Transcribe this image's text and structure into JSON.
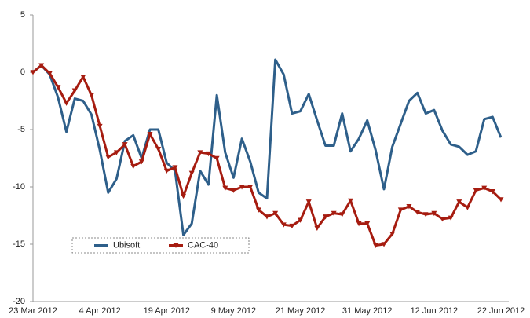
{
  "chart_data": {
    "type": "line",
    "categories": [
      "23 Mar 2012",
      null,
      null,
      null,
      null,
      null,
      null,
      null,
      "4 Apr 2012",
      null,
      null,
      null,
      null,
      null,
      null,
      null,
      "19 Apr 2012",
      null,
      null,
      null,
      null,
      null,
      null,
      null,
      "9 May 2012",
      null,
      null,
      null,
      null,
      null,
      null,
      null,
      "21 May 2012",
      null,
      null,
      null,
      null,
      null,
      null,
      null,
      "31 May 2012",
      null,
      null,
      null,
      null,
      null,
      null,
      null,
      "12 Jun 2012",
      null,
      null,
      null,
      null,
      null,
      null,
      null,
      "22 Jun 2012"
    ],
    "series": [
      {
        "name": "Ubisoft",
        "color": "#2e5f8a",
        "marker": "none",
        "values": [
          0,
          0.6,
          -0.2,
          -2.2,
          -5.2,
          -2.3,
          -2.5,
          -3.7,
          -6.8,
          -10.5,
          -9.3,
          -6.0,
          -5.5,
          -7.5,
          -5.0,
          -5.0,
          -7.9,
          -8.6,
          -14.2,
          -13.2,
          -8.6,
          -9.8,
          -2.0,
          -7.0,
          -9.2,
          -5.8,
          -7.8,
          -10.5,
          -11.0,
          1.1,
          -0.2,
          -3.6,
          -3.4,
          -1.9,
          -4.2,
          -6.4,
          -6.4,
          -3.6,
          -6.9,
          -5.8,
          -4.2,
          -6.8,
          -10.2,
          -6.5,
          -4.5,
          -2.5,
          -1.8,
          -3.6,
          -3.3,
          -5.1,
          -6.3,
          -6.5,
          -7.2,
          -6.9,
          -4.1,
          -3.9,
          -5.7
        ]
      },
      {
        "name": "CAC-40",
        "color": "#a61c10",
        "marker": "triangle-down",
        "values": [
          0,
          0.6,
          -0.1,
          -1.3,
          -2.7,
          -1.6,
          -0.4,
          -2.0,
          -4.7,
          -7.4,
          -7.0,
          -6.3,
          -8.2,
          -7.8,
          -5.4,
          -6.7,
          -8.6,
          -8.3,
          -10.8,
          -8.8,
          -7.0,
          -7.1,
          -7.5,
          -10.1,
          -10.3,
          -10.0,
          -10.0,
          -12.0,
          -12.6,
          -12.3,
          -13.3,
          -13.4,
          -12.9,
          -11.3,
          -13.6,
          -12.6,
          -12.3,
          -12.4,
          -11.2,
          -13.2,
          -13.2,
          -15.1,
          -15.0,
          -14.1,
          -12.0,
          -11.7,
          -12.2,
          -12.4,
          -12.3,
          -12.8,
          -12.7,
          -11.3,
          -11.8,
          -10.3,
          -10.1,
          -10.4,
          -11.1
        ]
      }
    ],
    "ylim": [
      -20,
      5
    ],
    "yticks": [
      -20,
      -15,
      -10,
      -5,
      0,
      5
    ],
    "legend": "lower-left"
  }
}
